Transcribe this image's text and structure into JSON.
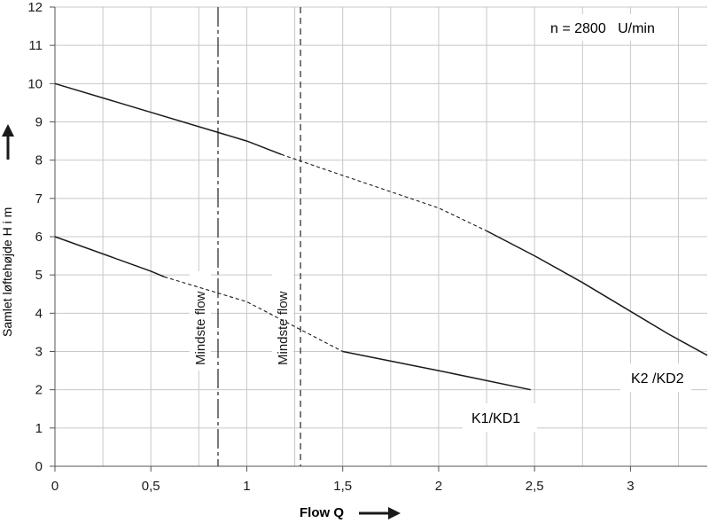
{
  "chart_data": {
    "type": "line",
    "xlabel": "Flow Q",
    "ylabel": "Samlet løftehøjde H i m",
    "annotation": "n = 2800   U/min",
    "xlim": [
      0,
      3.4
    ],
    "ylim": [
      0,
      12
    ],
    "x_ticks": [
      {
        "value": 0,
        "label": "0"
      },
      {
        "value": 0.5,
        "label": "0,5"
      },
      {
        "value": 1,
        "label": "1"
      },
      {
        "value": 1.5,
        "label": "1,5"
      },
      {
        "value": 2,
        "label": "2"
      },
      {
        "value": 2.5,
        "label": "2,5"
      },
      {
        "value": 3,
        "label": "3"
      }
    ],
    "y_ticks": [
      0,
      1,
      2,
      3,
      4,
      5,
      6,
      7,
      8,
      9,
      10,
      11,
      12
    ],
    "x_minor_grid": 0.25,
    "grid": true,
    "series": [
      {
        "name": "K2 /KD2",
        "color": "#1a1a1a",
        "points": [
          [
            0,
            10
          ],
          [
            0.5,
            9.25
          ],
          [
            1,
            8.5
          ],
          [
            1.18,
            8.15
          ],
          [
            1.5,
            7.6
          ],
          [
            2,
            6.75
          ],
          [
            2.25,
            6.15
          ],
          [
            2.5,
            5.5
          ],
          [
            2.75,
            4.8
          ],
          [
            3,
            4.05
          ],
          [
            3.2,
            3.45
          ],
          [
            3.4,
            2.9
          ]
        ],
        "dashed_ranges": [
          [
            1.18,
            2.25
          ]
        ]
      },
      {
        "name": "K1/KD1",
        "color": "#1a1a1a",
        "points": [
          [
            0,
            6
          ],
          [
            0.5,
            5.1
          ],
          [
            0.57,
            4.95
          ],
          [
            1,
            4.3
          ],
          [
            1.5,
            3.0
          ],
          [
            2,
            2.5
          ],
          [
            2.48,
            2.0
          ]
        ],
        "dashed_ranges": [
          [
            0.57,
            1.5
          ]
        ]
      }
    ],
    "vlines": [
      {
        "x": 0.85,
        "label": "Mindste flow",
        "style": "dashdot"
      },
      {
        "x": 1.28,
        "label": "Mindste flow",
        "style": "dashed"
      }
    ]
  }
}
